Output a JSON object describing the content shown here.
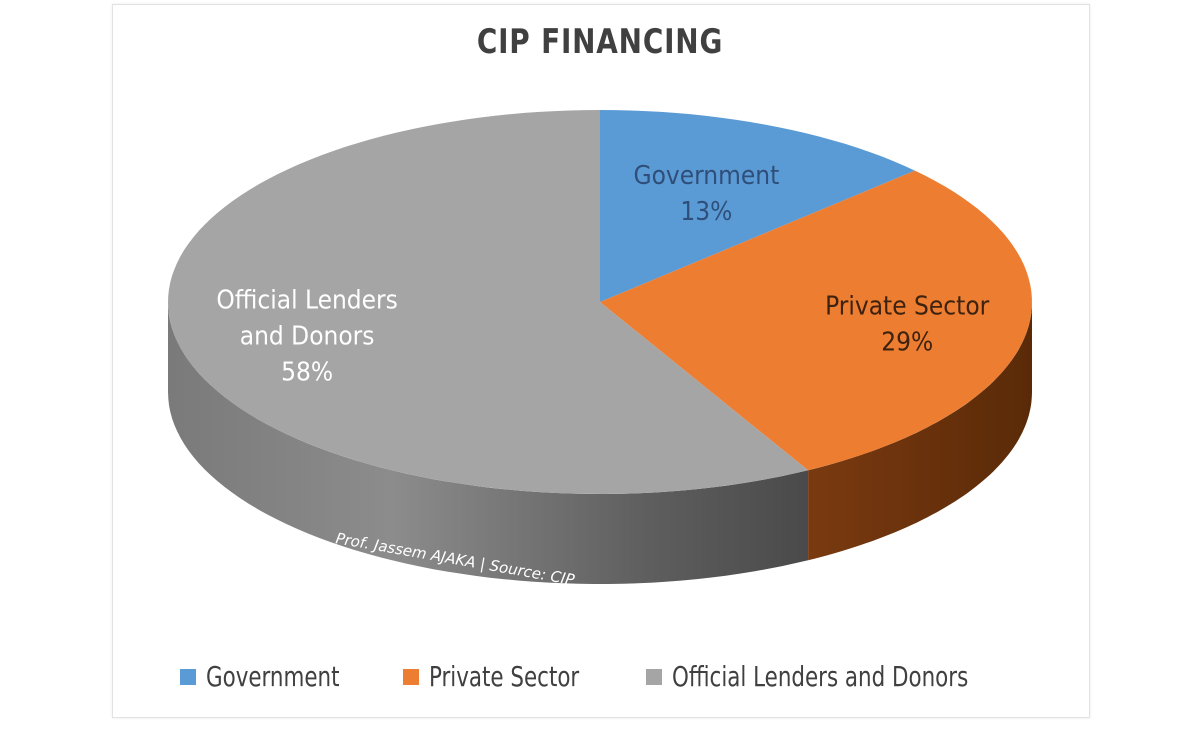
{
  "chart_data": {
    "type": "pie",
    "title": "CIP FINANCING",
    "slices": [
      {
        "label": "Government",
        "value": 13,
        "value_label": "13%",
        "color": "#5b9bd5"
      },
      {
        "label": "Private Sector",
        "value": 29,
        "value_label": "29%",
        "color": "#ed7d31"
      },
      {
        "label": "Official Lenders and Donors",
        "value": 58,
        "value_label": "58%",
        "color": "#a5a5a5"
      }
    ],
    "legend_position": "bottom",
    "style": "3d",
    "annotation": "Prof. Jassem AJAKA | Source: CIP"
  }
}
